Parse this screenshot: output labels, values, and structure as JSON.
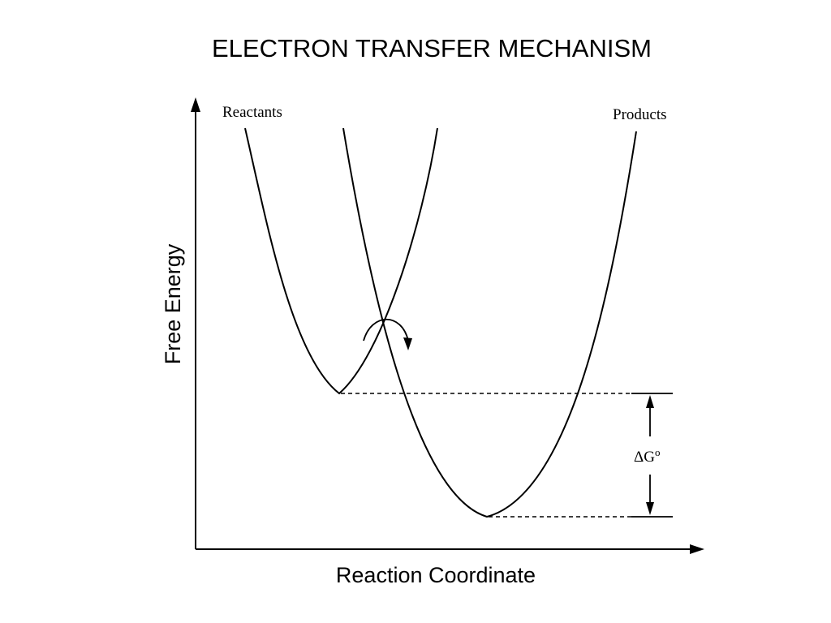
{
  "title": "ELECTRON TRANSFER MECHANISM",
  "labels": {
    "reactants": "Reactants",
    "products": "Products",
    "y_axis": "Free Energy",
    "x_axis": "Reaction Coordinate",
    "delta_g_symbol": "ΔG",
    "delta_g_superscript": "o"
  },
  "icons": {
    "transition_arrow": "curved-arrow-icon"
  }
}
